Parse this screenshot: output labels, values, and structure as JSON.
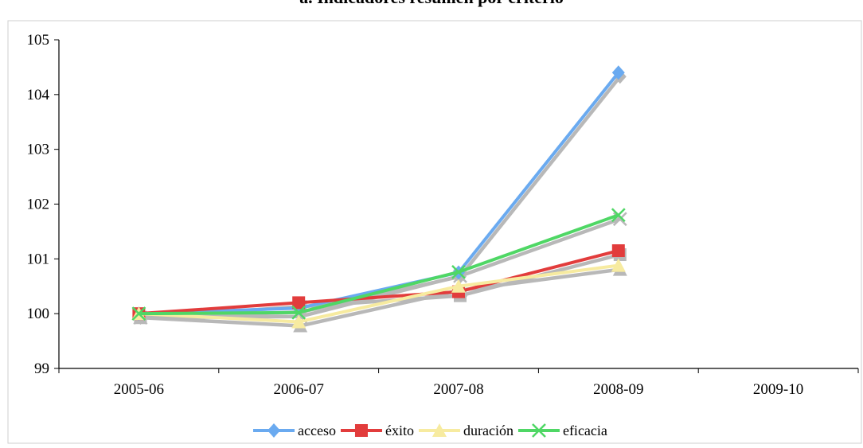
{
  "chart_data": {
    "type": "line",
    "title": "a. Indicadores resumen por criterio",
    "categories": [
      "2005-06",
      "2006-07",
      "2007-08",
      "2008-09",
      "2009-10"
    ],
    "ylim": [
      99,
      105
    ],
    "yticks": [
      "99",
      "100",
      "101",
      "102",
      "103",
      "104",
      "105"
    ],
    "grid": false,
    "legend": "bottom",
    "series": [
      {
        "name": "acceso",
        "color": "#6aaaf0",
        "marker": "diamond",
        "values": [
          100,
          100.1,
          100.75,
          104.4,
          null
        ]
      },
      {
        "name": "éxito",
        "color": "#e23c3c",
        "marker": "square",
        "values": [
          100,
          100.2,
          100.4,
          101.15,
          null
        ]
      },
      {
        "name": "duración",
        "color": "#f7eba0",
        "marker": "triangle",
        "values": [
          100,
          99.85,
          100.5,
          100.88,
          null
        ]
      },
      {
        "name": "eficacia",
        "color": "#4fd765",
        "marker": "x",
        "values": [
          100,
          100.02,
          100.76,
          101.8,
          null
        ]
      }
    ]
  }
}
